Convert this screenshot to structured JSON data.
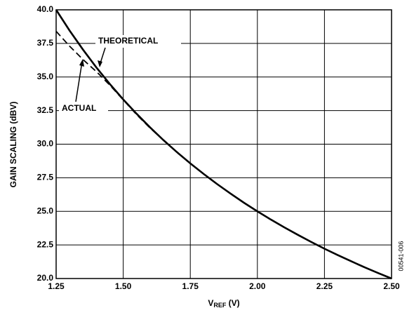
{
  "chart_data": {
    "type": "line",
    "xlabel": {
      "main": "V",
      "sub": "REF",
      "unit": " (V)"
    },
    "ylabel": "GAIN SCALING (dBV)",
    "figure_id": "00541-006",
    "xlim": [
      1.25,
      2.5
    ],
    "ylim": [
      20,
      40
    ],
    "xticks": [
      1.25,
      {
        "value": 1.5,
        "label": "1.50"
      },
      1.75,
      {
        "value": 2,
        "label": "2.00"
      },
      2.25,
      {
        "value": 2.5,
        "label": "2.50"
      }
    ],
    "yticks": [
      {
        "value": 20,
        "label": "20.0"
      },
      22.5,
      {
        "value": 25,
        "label": "25.0"
      },
      27.5,
      {
        "value": 30,
        "label": "30.0"
      },
      32.5,
      {
        "value": 35,
        "label": "35.0"
      },
      37.5,
      {
        "value": 40,
        "label": "40.0"
      }
    ],
    "grid": true,
    "series": [
      {
        "name": "THEORETICAL",
        "color": "#000000",
        "style": "solid",
        "x": [
          1.25,
          1.3,
          1.35,
          1.4,
          1.45,
          1.5,
          1.55,
          1.6,
          1.65,
          1.7,
          1.75,
          1.8,
          1.85,
          1.9,
          1.95,
          2,
          2.05,
          2.1,
          2.15,
          2.2,
          2.25,
          2.3,
          2.35,
          2.4,
          2.45,
          2.5
        ],
        "values": [
          40,
          38.46,
          37.04,
          35.71,
          34.48,
          33.33,
          32.26,
          31.25,
          30.3,
          29.41,
          28.57,
          27.78,
          27.03,
          26.32,
          25.64,
          25,
          24.39,
          23.81,
          23.26,
          22.73,
          22.22,
          21.74,
          21.28,
          20.83,
          20.41,
          20
        ]
      },
      {
        "name": "ACTUAL",
        "color": "#000000",
        "style": "dashed",
        "x": [
          1.25,
          1.3,
          1.35,
          1.4,
          1.45,
          1.5,
          1.55,
          1.6,
          1.65
        ],
        "values": [
          38.4,
          37.3,
          36.3,
          35.4,
          34.4,
          33.3,
          32.2,
          31.2,
          30.3
        ]
      }
    ]
  }
}
